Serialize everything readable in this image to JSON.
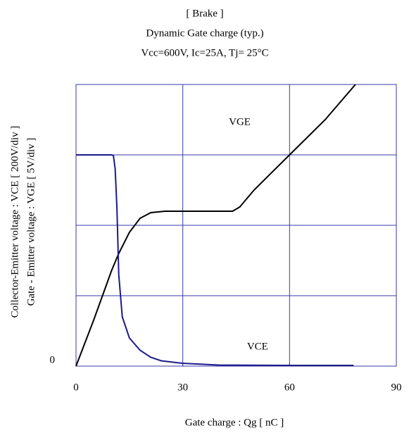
{
  "chart_data": {
    "type": "line",
    "title": "[ Brake ]",
    "subtitle": "Dynamic Gate charge  (typ.)",
    "conditions": "Vcc=600V,  Ic=25A, Tj= 25°C",
    "x_label": "Gate charge  :  Qg  [ nC ]",
    "y_label": "Gate - Emitter voltage  :  VGE     [ 5V/div ]",
    "y2_label": "Collector-Emitter voltage : VCE [ 200V/div ]",
    "xlim": [
      0,
      90
    ],
    "xticks": [
      0,
      30,
      60,
      90
    ],
    "xgrid": [
      30,
      60
    ],
    "ylim": [
      0,
      20
    ],
    "yticks": [
      0
    ],
    "ygrid": [
      5,
      10,
      15
    ],
    "y2lim": [
      0,
      800
    ],
    "grid_color": "#3a3aa8",
    "series": [
      {
        "name": "VGE",
        "color": "#000000",
        "x": [
          0,
          5,
          10,
          12,
          15,
          18,
          21,
          25,
          35,
          44,
          46,
          50,
          60,
          70,
          78.5
        ],
        "values": [
          0,
          3.3,
          6.8,
          8,
          9.5,
          10.5,
          10.9,
          11,
          11,
          11,
          11.3,
          12.5,
          15,
          17.5,
          20
        ]
      },
      {
        "name": "VCE",
        "color": "#1a1a8c",
        "axis": "y2",
        "x": [
          0,
          5,
          10,
          10.5,
          11,
          11.5,
          12,
          13,
          15,
          18,
          21,
          24,
          30,
          40,
          60,
          78
        ],
        "values": [
          600,
          600,
          600,
          598,
          560,
          450,
          260,
          140,
          80,
          45,
          25,
          15,
          8,
          3,
          2,
          2
        ]
      }
    ],
    "annotations": [
      {
        "text": "VGE",
        "x": 46,
        "y": 17.3
      },
      {
        "text": "VCE",
        "x": 51,
        "y": 1.35
      }
    ]
  }
}
